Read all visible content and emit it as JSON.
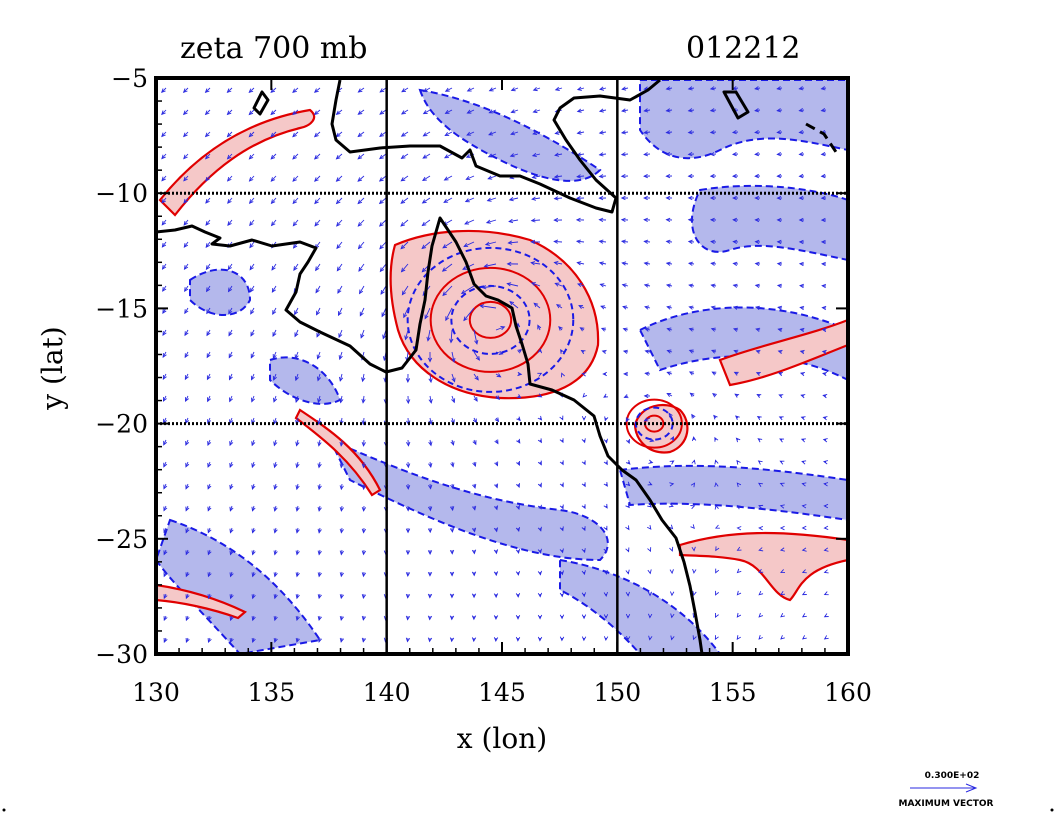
{
  "chart_data": {
    "type": "contour",
    "title": "zeta 700 mb",
    "date_label": "012212",
    "xlabel": "x (lon)",
    "ylabel": "y (lat)",
    "xlim": [
      130,
      160
    ],
    "ylim": [
      -30,
      -5
    ],
    "xticks": [
      130,
      135,
      140,
      145,
      150,
      155,
      160
    ],
    "yticks": [
      -5,
      -10,
      -15,
      -20,
      -25,
      -30
    ],
    "grid_lines_x": [
      140,
      150
    ],
    "grid_lines_y": [
      -10,
      -20
    ],
    "fields": {
      "positive_vorticity": {
        "contour": "solid",
        "line_color": "#e00000",
        "fill_color": "#f5c8c8"
      },
      "negative_vorticity": {
        "contour": "dashed",
        "line_color": "#1a1ae6",
        "fill_color": "#b4b8ec"
      },
      "wind_vectors": {
        "color": "#2a2ae0"
      }
    },
    "features": {
      "cyclone_center": {
        "lon": 144.5,
        "lat": -15.5
      },
      "secondary_vortex": {
        "lon": 151.6,
        "lat": -20.0
      }
    },
    "coastline_color": "#000000",
    "reference_vector": {
      "value_label": "0.300E+02",
      "caption": "MAXIMUM VECTOR"
    }
  }
}
